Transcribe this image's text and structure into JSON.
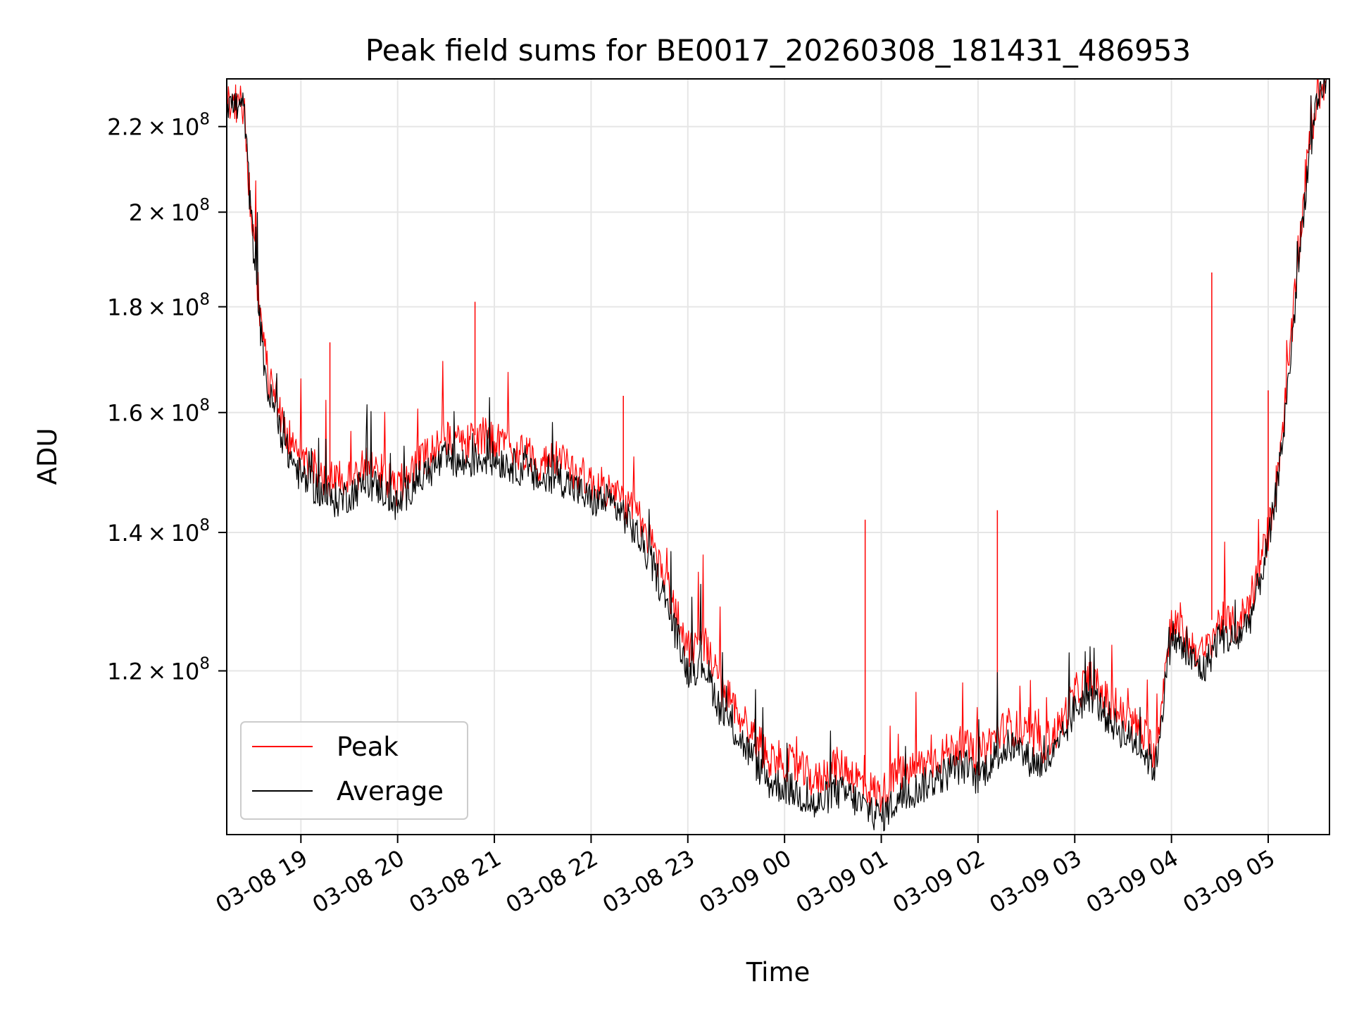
{
  "chart_data": {
    "type": "line",
    "title": "Peak field sums for BE0017_20260308_181431_486953",
    "xlabel": "Time",
    "ylabel": "ADU",
    "grid": true,
    "legend_position": "lower-left",
    "y_scale": "log",
    "xlim": [
      "2026-03-08 18:14",
      "2026-03-09 05:38"
    ],
    "ylim": [
      100000000,
      232000000
    ],
    "x_ticks": [
      {
        "value": "2026-03-08 19:00",
        "label": "03-08 19"
      },
      {
        "value": "2026-03-08 20:00",
        "label": "03-08 20"
      },
      {
        "value": "2026-03-08 21:00",
        "label": "03-08 21"
      },
      {
        "value": "2026-03-08 22:00",
        "label": "03-08 22"
      },
      {
        "value": "2026-03-08 23:00",
        "label": "03-08 23"
      },
      {
        "value": "2026-03-09 00:00",
        "label": "03-09 00"
      },
      {
        "value": "2026-03-09 01:00",
        "label": "03-09 01"
      },
      {
        "value": "2026-03-09 02:00",
        "label": "03-09 02"
      },
      {
        "value": "2026-03-09 03:00",
        "label": "03-09 03"
      },
      {
        "value": "2026-03-09 04:00",
        "label": "03-09 04"
      },
      {
        "value": "2026-03-09 05:00",
        "label": "03-09 05"
      }
    ],
    "y_ticks": [
      {
        "value": 120000000,
        "mantissa": "1.2",
        "exponent": "8"
      },
      {
        "value": 140000000,
        "mantissa": "1.4",
        "exponent": "8"
      },
      {
        "value": 160000000,
        "mantissa": "1.6",
        "exponent": "8"
      },
      {
        "value": 180000000,
        "mantissa": "1.8",
        "exponent": "8"
      },
      {
        "value": 200000000,
        "mantissa": "2",
        "exponent": "8"
      },
      {
        "value": 220000000,
        "mantissa": "2.2",
        "exponent": "8"
      }
    ],
    "series": [
      {
        "name": "Peak",
        "color": "#ff0000",
        "x": [
          "2026-03-08 18:14",
          "2026-03-08 18:20",
          "2026-03-08 18:25",
          "2026-03-08 18:28",
          "2026-03-08 18:32",
          "2026-03-08 18:36",
          "2026-03-08 18:40",
          "2026-03-08 18:45",
          "2026-03-08 18:50",
          "2026-03-08 19:00",
          "2026-03-08 19:10",
          "2026-03-08 19:20",
          "2026-03-08 19:30",
          "2026-03-08 19:40",
          "2026-03-08 19:50",
          "2026-03-08 20:00",
          "2026-03-08 20:10",
          "2026-03-08 20:20",
          "2026-03-08 20:30",
          "2026-03-08 20:40",
          "2026-03-08 20:50",
          "2026-03-08 21:00",
          "2026-03-08 21:10",
          "2026-03-08 21:20",
          "2026-03-08 21:30",
          "2026-03-08 21:40",
          "2026-03-08 21:50",
          "2026-03-08 22:00",
          "2026-03-08 22:10",
          "2026-03-08 22:20",
          "2026-03-08 22:30",
          "2026-03-08 22:40",
          "2026-03-08 22:50",
          "2026-03-08 23:00",
          "2026-03-08 23:10",
          "2026-03-08 23:20",
          "2026-03-08 23:30",
          "2026-03-08 23:40",
          "2026-03-08 23:50",
          "2026-03-09 00:00",
          "2026-03-09 00:10",
          "2026-03-09 00:20",
          "2026-03-09 00:30",
          "2026-03-09 00:40",
          "2026-03-09 00:50",
          "2026-03-09 01:00",
          "2026-03-09 01:10",
          "2026-03-09 01:20",
          "2026-03-09 01:30",
          "2026-03-09 01:40",
          "2026-03-09 01:50",
          "2026-03-09 02:00",
          "2026-03-09 02:10",
          "2026-03-09 02:20",
          "2026-03-09 02:30",
          "2026-03-09 02:40",
          "2026-03-09 02:50",
          "2026-03-09 03:00",
          "2026-03-09 03:10",
          "2026-03-09 03:20",
          "2026-03-09 03:30",
          "2026-03-09 03:40",
          "2026-03-09 03:50",
          "2026-03-09 04:00",
          "2026-03-09 04:10",
          "2026-03-09 04:20",
          "2026-03-09 04:30",
          "2026-03-09 04:40",
          "2026-03-09 04:50",
          "2026-03-09 05:00",
          "2026-03-09 05:05",
          "2026-03-09 05:10",
          "2026-03-09 05:15",
          "2026-03-09 05:20",
          "2026-03-09 05:25",
          "2026-03-09 05:30",
          "2026-03-09 05:36"
        ],
        "y": [
          226500000,
          225500000,
          225000000,
          205000000,
          188000000,
          175000000,
          166000000,
          163000000,
          157000000,
          152000000,
          150000000,
          148000000,
          149000000,
          151000000,
          150000000,
          147000000,
          151000000,
          153000000,
          156000000,
          154000000,
          156000000,
          155000000,
          154000000,
          153000000,
          151000000,
          152000000,
          150000000,
          148000000,
          147000000,
          145000000,
          142000000,
          137000000,
          130000000,
          123000000,
          124000000,
          118000000,
          115000000,
          112000000,
          109000000,
          108500000,
          107500000,
          106000000,
          108000000,
          107500000,
          105500000,
          104500000,
          107000000,
          107500000,
          108500000,
          109500000,
          110500000,
          109000000,
          111500000,
          113000000,
          111500000,
          110500000,
          112500000,
          117000000,
          119000000,
          116000000,
          114000000,
          112500000,
          109500000,
          127000000,
          124000000,
          122000000,
          127000000,
          126000000,
          130000000,
          140000000,
          148000000,
          160000000,
          176000000,
          195000000,
          214000000,
          226000000,
          233000000
        ],
        "spikes": [
          {
            "x": "2026-03-08 20:48",
            "y": 181000000
          },
          {
            "x": "2026-03-08 19:18",
            "y": 173000000
          },
          {
            "x": "2026-03-08 22:20",
            "y": 163000000
          },
          {
            "x": "2026-03-09 00:50",
            "y": 142000000
          },
          {
            "x": "2026-03-09 02:12",
            "y": 143500000
          },
          {
            "x": "2026-03-09 04:25",
            "y": 187000000
          },
          {
            "x": "2026-03-09 05:00",
            "y": 164000000
          }
        ]
      },
      {
        "name": "Average",
        "color": "#000000",
        "x": [
          "2026-03-08 18:14",
          "2026-03-08 18:20",
          "2026-03-08 18:25",
          "2026-03-08 18:28",
          "2026-03-08 18:32",
          "2026-03-08 18:36",
          "2026-03-08 18:40",
          "2026-03-08 18:45",
          "2026-03-08 18:50",
          "2026-03-08 19:00",
          "2026-03-08 19:10",
          "2026-03-08 19:20",
          "2026-03-08 19:30",
          "2026-03-08 19:40",
          "2026-03-08 19:50",
          "2026-03-08 20:00",
          "2026-03-08 20:10",
          "2026-03-08 20:20",
          "2026-03-08 20:30",
          "2026-03-08 20:40",
          "2026-03-08 20:50",
          "2026-03-08 21:00",
          "2026-03-08 21:10",
          "2026-03-08 21:20",
          "2026-03-08 21:30",
          "2026-03-08 21:40",
          "2026-03-08 21:50",
          "2026-03-08 22:00",
          "2026-03-08 22:10",
          "2026-03-08 22:20",
          "2026-03-08 22:30",
          "2026-03-08 22:40",
          "2026-03-08 22:50",
          "2026-03-08 23:00",
          "2026-03-08 23:10",
          "2026-03-08 23:20",
          "2026-03-08 23:30",
          "2026-03-08 23:40",
          "2026-03-08 23:50",
          "2026-03-09 00:00",
          "2026-03-09 00:10",
          "2026-03-09 00:20",
          "2026-03-09 00:30",
          "2026-03-09 00:40",
          "2026-03-09 00:50",
          "2026-03-09 01:00",
          "2026-03-09 01:10",
          "2026-03-09 01:20",
          "2026-03-09 01:30",
          "2026-03-09 01:40",
          "2026-03-09 01:50",
          "2026-03-09 02:00",
          "2026-03-09 02:10",
          "2026-03-09 02:20",
          "2026-03-09 02:30",
          "2026-03-09 02:40",
          "2026-03-09 02:50",
          "2026-03-09 03:00",
          "2026-03-09 03:10",
          "2026-03-09 03:20",
          "2026-03-09 03:30",
          "2026-03-09 03:40",
          "2026-03-09 03:50",
          "2026-03-09 04:00",
          "2026-03-09 04:10",
          "2026-03-09 04:20",
          "2026-03-09 04:30",
          "2026-03-09 04:40",
          "2026-03-09 04:50",
          "2026-03-09 05:00",
          "2026-03-09 05:05",
          "2026-03-09 05:10",
          "2026-03-09 05:15",
          "2026-03-09 05:20",
          "2026-03-09 05:25",
          "2026-03-09 05:30",
          "2026-03-09 05:36"
        ],
        "y": [
          226000000,
          225000000,
          224500000,
          204000000,
          186000000,
          172000000,
          163000000,
          160000000,
          154000000,
          149000000,
          147000000,
          145000000,
          146000000,
          148000000,
          147000000,
          144000000,
          148000000,
          150000000,
          152000000,
          151000000,
          152000000,
          152000000,
          151000000,
          150000000,
          148000000,
          149000000,
          147000000,
          145000000,
          145000000,
          143000000,
          139000000,
          134000000,
          127000000,
          120000000,
          121000000,
          115000000,
          112000000,
          109000000,
          106000000,
          105500000,
          104500000,
          103000000,
          105000000,
          104500000,
          103000000,
          102000000,
          104000000,
          105000000,
          106000000,
          107000000,
          108000000,
          106500000,
          109000000,
          110500000,
          109000000,
          108000000,
          110000000,
          115000000,
          117000000,
          114000000,
          112000000,
          110500000,
          107500000,
          125000000,
          122000000,
          120000000,
          125000000,
          124000000,
          128000000,
          138000000,
          146000000,
          158000000,
          174000000,
          193000000,
          212000000,
          224000000,
          232000000
        ]
      }
    ]
  }
}
